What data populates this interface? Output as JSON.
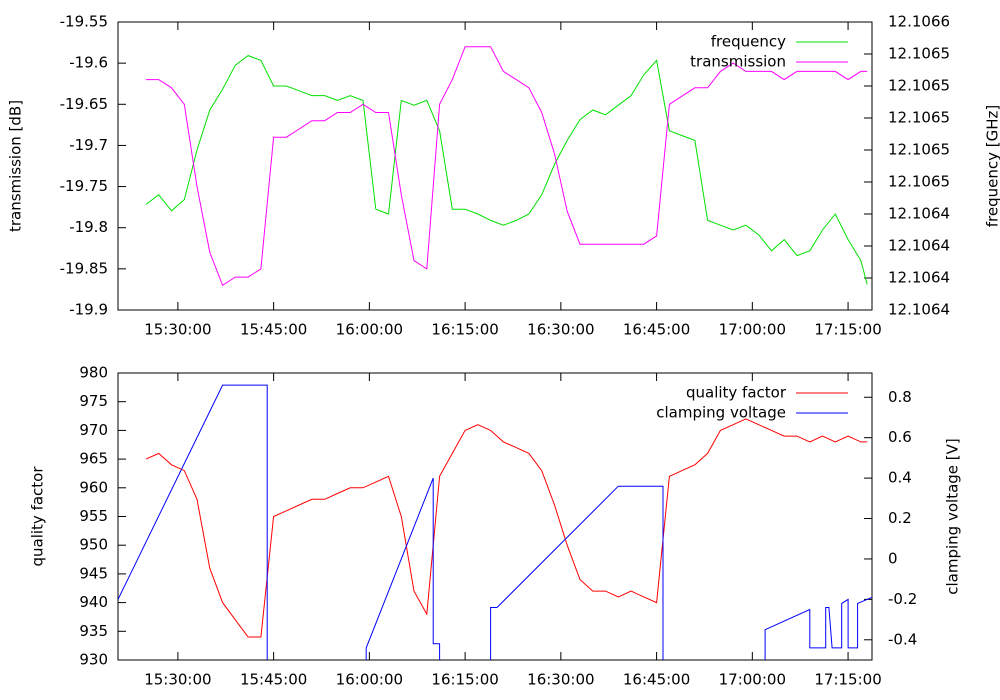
{
  "chart_data": [
    {
      "type": "line",
      "ylabel": "transmission [dB]",
      "y2label": "frequency [GHz]",
      "x": [
        "15:25:00",
        "15:27:00",
        "15:29:00",
        "15:31:00",
        "15:33:00",
        "15:35:00",
        "15:37:00",
        "15:39:00",
        "15:41:00",
        "15:43:00",
        "15:45:00",
        "15:47:00",
        "15:49:00",
        "15:51:00",
        "15:53:00",
        "15:55:00",
        "15:57:00",
        "15:59:00",
        "16:01:00",
        "16:03:00",
        "16:05:00",
        "16:07:00",
        "16:09:00",
        "16:11:00",
        "16:13:00",
        "16:15:00",
        "16:17:00",
        "16:19:00",
        "16:21:00",
        "16:23:00",
        "16:25:00",
        "16:27:00",
        "16:29:00",
        "16:31:00",
        "16:33:00",
        "16:35:00",
        "16:37:00",
        "16:39:00",
        "16:41:00",
        "16:43:00",
        "16:45:00",
        "16:47:00",
        "16:49:00",
        "16:51:00",
        "16:53:00",
        "16:55:00",
        "16:57:00",
        "16:59:00",
        "17:01:00",
        "17:03:00",
        "17:05:00",
        "17:07:00",
        "17:09:00",
        "17:11:00",
        "17:13:00",
        "17:15:00",
        "17:17:00",
        "17:18:00"
      ],
      "series": [
        {
          "name": "frequency",
          "color": "#00e000",
          "axis": "y2",
          "values": [
            12.106446,
            12.106452,
            12.106442,
            12.106449,
            12.10648,
            12.106505,
            12.106518,
            12.106533,
            12.106539,
            12.106536,
            12.10652,
            12.10652,
            12.106517,
            12.106514,
            12.106514,
            12.106511,
            12.106514,
            12.106511,
            12.106443,
            12.10644,
            12.106511,
            12.106508,
            12.106511,
            12.106492,
            12.106443,
            12.106443,
            12.10644,
            12.106436,
            12.106433,
            12.106436,
            12.10644,
            12.106452,
            12.106471,
            12.106486,
            12.106499,
            12.106505,
            12.106502,
            12.106508,
            12.106514,
            12.106527,
            12.106536,
            12.106492,
            12.106489,
            12.106486,
            12.106436,
            12.106433,
            12.10643,
            12.106433,
            12.106427,
            12.106417,
            12.106424,
            12.106414,
            12.106417,
            12.10643,
            12.10644,
            12.106424,
            12.106411,
            12.106396
          ]
        },
        {
          "name": "transmission",
          "color": "#ff00ff",
          "values": [
            -19.62,
            -19.62,
            -19.63,
            -19.65,
            -19.75,
            -19.83,
            -19.87,
            -19.86,
            -19.86,
            -19.85,
            -19.69,
            -19.69,
            -19.68,
            -19.67,
            -19.67,
            -19.66,
            -19.66,
            -19.65,
            -19.66,
            -19.66,
            -19.76,
            -19.84,
            -19.85,
            -19.65,
            -19.62,
            -19.58,
            -19.58,
            -19.58,
            -19.61,
            -19.62,
            -19.63,
            -19.66,
            -19.71,
            -19.78,
            -19.82,
            -19.82,
            -19.82,
            -19.82,
            -19.82,
            -19.82,
            -19.81,
            -19.65,
            -19.64,
            -19.63,
            -19.63,
            -19.61,
            -19.6,
            -19.61,
            -19.61,
            -19.61,
            -19.62,
            -19.61,
            -19.61,
            -19.61,
            -19.61,
            -19.62,
            -19.61,
            -19.61
          ]
        }
      ],
      "xlim": [
        "15:20:37",
        "17:18:45"
      ],
      "xticks": [
        "15:30:00",
        "15:45:00",
        "16:00:00",
        "16:15:00",
        "16:30:00",
        "16:45:00",
        "17:00:00",
        "17:15:00"
      ],
      "ylim": [
        -19.9,
        -19.55
      ],
      "yticks": [
        -19.55,
        -19.6,
        -19.65,
        -19.7,
        -19.75,
        -19.8,
        -19.85,
        -19.9
      ],
      "y2lim": [
        12.10638,
        12.10656
      ],
      "y2ticks": [
        {
          "value": 12.10656,
          "label": "12.1066"
        },
        {
          "value": 12.10654,
          "label": "12.1065"
        },
        {
          "value": 12.10652,
          "label": "12.1065"
        },
        {
          "value": 12.1065,
          "label": "12.1065"
        },
        {
          "value": 12.10648,
          "label": "12.1065"
        },
        {
          "value": 12.10646,
          "label": "12.1065"
        },
        {
          "value": 12.10644,
          "label": "12.1064"
        },
        {
          "value": 12.10642,
          "label": "12.1064"
        },
        {
          "value": 12.1064,
          "label": "12.1064"
        },
        {
          "value": 12.10638,
          "label": "12.1064"
        }
      ],
      "legend": "top-right"
    },
    {
      "type": "line",
      "ylabel": "quality factor",
      "y2label": "clamping voltage [V]",
      "x": [
        "15:25:00",
        "15:27:00",
        "15:29:00",
        "15:31:00",
        "15:33:00",
        "15:35:00",
        "15:37:00",
        "15:39:00",
        "15:41:00",
        "15:43:00",
        "15:45:00",
        "15:47:00",
        "15:49:00",
        "15:51:00",
        "15:53:00",
        "15:55:00",
        "15:57:00",
        "15:59:00",
        "16:01:00",
        "16:03:00",
        "16:05:00",
        "16:07:00",
        "16:09:00",
        "16:11:00",
        "16:13:00",
        "16:15:00",
        "16:17:00",
        "16:19:00",
        "16:21:00",
        "16:23:00",
        "16:25:00",
        "16:27:00",
        "16:29:00",
        "16:31:00",
        "16:33:00",
        "16:35:00",
        "16:37:00",
        "16:39:00",
        "16:41:00",
        "16:43:00",
        "16:45:00",
        "16:47:00",
        "16:49:00",
        "16:51:00",
        "16:53:00",
        "16:55:00",
        "16:57:00",
        "16:59:00",
        "17:01:00",
        "17:03:00",
        "17:05:00",
        "17:07:00",
        "17:09:00",
        "17:11:00",
        "17:13:00",
        "17:15:00",
        "17:17:00",
        "17:18:00"
      ],
      "series": [
        {
          "name": "quality factor",
          "color": "#ff0000",
          "values": [
            965,
            966,
            964,
            963,
            958,
            946,
            940,
            937,
            934,
            934,
            955,
            956,
            957,
            958,
            958,
            959,
            960,
            960,
            961,
            962,
            955,
            942,
            938,
            962,
            966,
            970,
            971,
            970,
            968,
            967,
            966,
            963,
            957,
            950,
            944,
            942,
            942,
            941,
            942,
            941,
            940,
            962,
            963,
            964,
            966,
            970,
            971,
            972,
            971,
            970,
            969,
            969,
            968,
            969,
            968,
            969,
            968,
            968
          ]
        },
        {
          "name": "clamping voltage",
          "color": "#0000ff",
          "axis": "y2",
          "x": [
            "15:20:37",
            "15:37:00",
            "15:44:00",
            "15:44:00",
            "15:59:30",
            "15:59:30",
            "16:10:00",
            "16:10:00",
            "16:11:00",
            "16:11:00",
            "16:19:00",
            "16:19:00",
            "16:20:00",
            "16:39:00",
            "16:46:00",
            "16:46:00",
            "17:02:00",
            "17:02:00",
            "17:09:00",
            "17:09:00",
            "17:11:30",
            "17:11:30",
            "17:12:00",
            "17:12:30",
            "17:14:00",
            "17:14:00",
            "17:15:00",
            "17:15:00",
            "17:16:30",
            "17:16:30",
            "17:18:45"
          ],
          "values": [
            -0.2,
            0.86,
            0.86,
            -0.6,
            -0.6,
            -0.44,
            0.4,
            -0.42,
            -0.42,
            -0.6,
            -0.6,
            -0.24,
            -0.24,
            0.36,
            0.36,
            -0.6,
            -0.6,
            -0.35,
            -0.25,
            -0.44,
            -0.44,
            -0.24,
            -0.24,
            -0.44,
            -0.44,
            -0.22,
            -0.2,
            -0.44,
            -0.44,
            -0.22,
            -0.19
          ]
        }
      ],
      "xlim": [
        "15:20:37",
        "17:18:45"
      ],
      "xticks": [
        "15:30:00",
        "15:45:00",
        "16:00:00",
        "16:15:00",
        "16:30:00",
        "16:45:00",
        "17:00:00",
        "17:15:00"
      ],
      "ylim": [
        930,
        980
      ],
      "yticks": [
        930,
        935,
        940,
        945,
        950,
        955,
        960,
        965,
        970,
        975,
        980
      ],
      "y2lim": [
        -0.5,
        0.92
      ],
      "y2ticks": [
        -0.4,
        -0.2,
        0,
        0.2,
        0.4,
        0.6,
        0.8
      ],
      "legend": "top-right"
    }
  ]
}
